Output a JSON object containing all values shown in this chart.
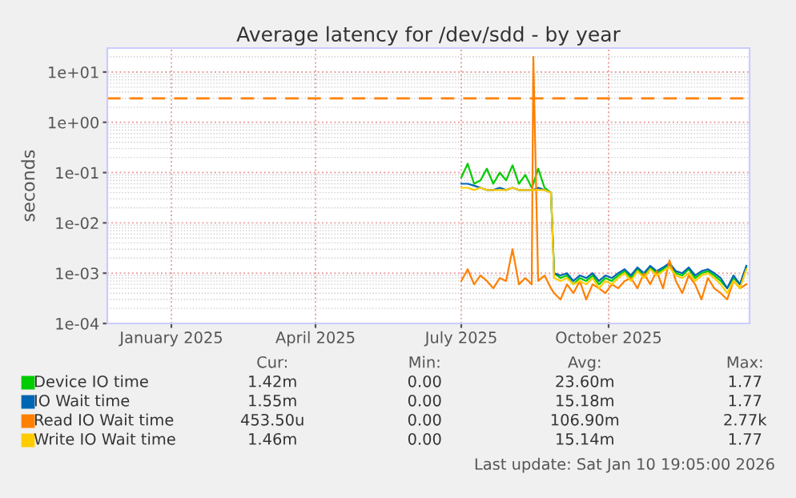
{
  "chart_data": {
    "type": "line",
    "title": "Average latency for /dev/sdd - by year",
    "ylabel": "seconds",
    "x": [
      "2025-07-01",
      "2025-07-05",
      "2025-07-09",
      "2025-07-13",
      "2025-07-17",
      "2025-07-21",
      "2025-07-25",
      "2025-07-29",
      "2025-08-02",
      "2025-08-06",
      "2025-08-10",
      "2025-08-14",
      "2025-08-15",
      "2025-08-18",
      "2025-08-22",
      "2025-08-26",
      "2025-08-28",
      "2025-09-01",
      "2025-09-05",
      "2025-09-09",
      "2025-09-13",
      "2025-09-17",
      "2025-09-21",
      "2025-09-25",
      "2025-09-29",
      "2025-10-03",
      "2025-10-07",
      "2025-10-11",
      "2025-10-15",
      "2025-10-19",
      "2025-10-23",
      "2025-10-27",
      "2025-10-31",
      "2025-11-04",
      "2025-11-08",
      "2025-11-12",
      "2025-11-16",
      "2025-11-20",
      "2025-11-24",
      "2025-11-28",
      "2025-12-02",
      "2025-12-06",
      "2025-12-10",
      "2025-12-14",
      "2025-12-18",
      "2025-12-22",
      "2025-12-26"
    ],
    "series": [
      {
        "name": "Device IO time",
        "color": "#00cc00",
        "values": [
          0.08,
          0.15,
          0.06,
          0.07,
          0.12,
          0.06,
          0.1,
          0.07,
          0.14,
          0.06,
          0.09,
          0.05,
          0.06,
          0.12,
          0.05,
          0.04,
          0.001,
          0.0008,
          0.0009,
          0.0006,
          0.0008,
          0.0007,
          0.0009,
          0.0006,
          0.0008,
          0.0007,
          0.0009,
          0.0011,
          0.0008,
          0.0012,
          0.0009,
          0.0013,
          0.001,
          0.0012,
          0.0015,
          0.001,
          0.0009,
          0.0012,
          0.0008,
          0.001,
          0.0011,
          0.0009,
          0.0007,
          0.0005,
          0.0008,
          0.0006,
          0.0013
        ]
      },
      {
        "name": "IO Wait time",
        "color": "#0066b3",
        "values": [
          0.06,
          0.06,
          0.055,
          0.05,
          0.045,
          0.045,
          0.05,
          0.045,
          0.05,
          0.045,
          0.045,
          0.045,
          0.045,
          0.05,
          0.045,
          0.04,
          0.001,
          0.0009,
          0.001,
          0.0007,
          0.0009,
          0.0008,
          0.001,
          0.0007,
          0.0009,
          0.0008,
          0.001,
          0.0012,
          0.0009,
          0.0013,
          0.001,
          0.0014,
          0.0011,
          0.0013,
          0.0016,
          0.0011,
          0.001,
          0.0013,
          0.0009,
          0.0011,
          0.0012,
          0.001,
          0.0008,
          0.0005,
          0.0009,
          0.0006,
          0.0014
        ]
      },
      {
        "name": "Read IO Wait time",
        "color": "#ff8000",
        "values": [
          0.0007,
          0.0012,
          0.0006,
          0.0009,
          0.0007,
          0.0005,
          0.0008,
          0.0007,
          0.003,
          0.0006,
          0.0008,
          0.0006,
          20,
          0.0007,
          0.0009,
          0.0005,
          0.0004,
          0.0003,
          0.0006,
          0.0004,
          0.0007,
          0.0003,
          0.0006,
          0.0005,
          0.0004,
          0.0006,
          0.0005,
          0.0007,
          0.0008,
          0.0005,
          0.001,
          0.0006,
          0.0011,
          0.0005,
          0.0018,
          0.0007,
          0.0004,
          0.0009,
          0.0006,
          0.0003,
          0.0008,
          0.0005,
          0.0004,
          0.0003,
          0.0007,
          0.0005,
          0.0006
        ]
      },
      {
        "name": "Write IO Wait time",
        "color": "#ffcc00",
        "values": [
          0.05,
          0.05,
          0.045,
          0.05,
          0.045,
          0.045,
          0.045,
          0.045,
          0.05,
          0.045,
          0.045,
          0.045,
          0.045,
          0.045,
          0.045,
          0.04,
          0.0008,
          0.0007,
          0.0008,
          0.0006,
          0.0007,
          0.0006,
          0.0008,
          0.0005,
          0.0007,
          0.0006,
          0.0008,
          0.001,
          0.0007,
          0.0011,
          0.0008,
          0.0012,
          0.0009,
          0.0011,
          0.0013,
          0.0009,
          0.0008,
          0.001,
          0.0007,
          0.0009,
          0.001,
          0.0008,
          0.0006,
          0.0004,
          0.0007,
          0.0005,
          0.0012
        ]
      }
    ],
    "xlim": [
      "2024-11-22",
      "2025-12-28"
    ],
    "xticks": [
      {
        "value": "2025-01-01",
        "label": "January 2025"
      },
      {
        "value": "2025-04-01",
        "label": "April 2025"
      },
      {
        "value": "2025-07-01",
        "label": "July 2025"
      },
      {
        "value": "2025-10-01",
        "label": "October 2025"
      }
    ],
    "ylim": [
      0.0001,
      30
    ],
    "yticks": [
      {
        "value": 0.0001,
        "label": "1e-04"
      },
      {
        "value": 0.001,
        "label": "1e-03"
      },
      {
        "value": 0.01,
        "label": "1e-02"
      },
      {
        "value": 0.1,
        "label": "1e-01"
      },
      {
        "value": 1,
        "label": "1e+00"
      },
      {
        "value": 10,
        "label": "1e+01"
      }
    ],
    "log": "y",
    "grid": true,
    "legend": "bottom",
    "ref_lines": [
      {
        "axis": "y",
        "value": 3,
        "color": "#ff8000",
        "line_style": "dashed"
      }
    ],
    "annotations": [
      "Cur:",
      "Min:",
      "Avg:",
      "Max:",
      "1.42m",
      "0.00",
      "23.60m",
      "1.77",
      "1.55m",
      "0.00",
      "15.18m",
      "1.77",
      "453.50u",
      "0.00",
      "106.90m",
      "2.77k",
      "1.46m",
      "0.00",
      "15.14m",
      "1.77",
      "Last update: Sat Jan 10 19:05:00 2026"
    ]
  }
}
